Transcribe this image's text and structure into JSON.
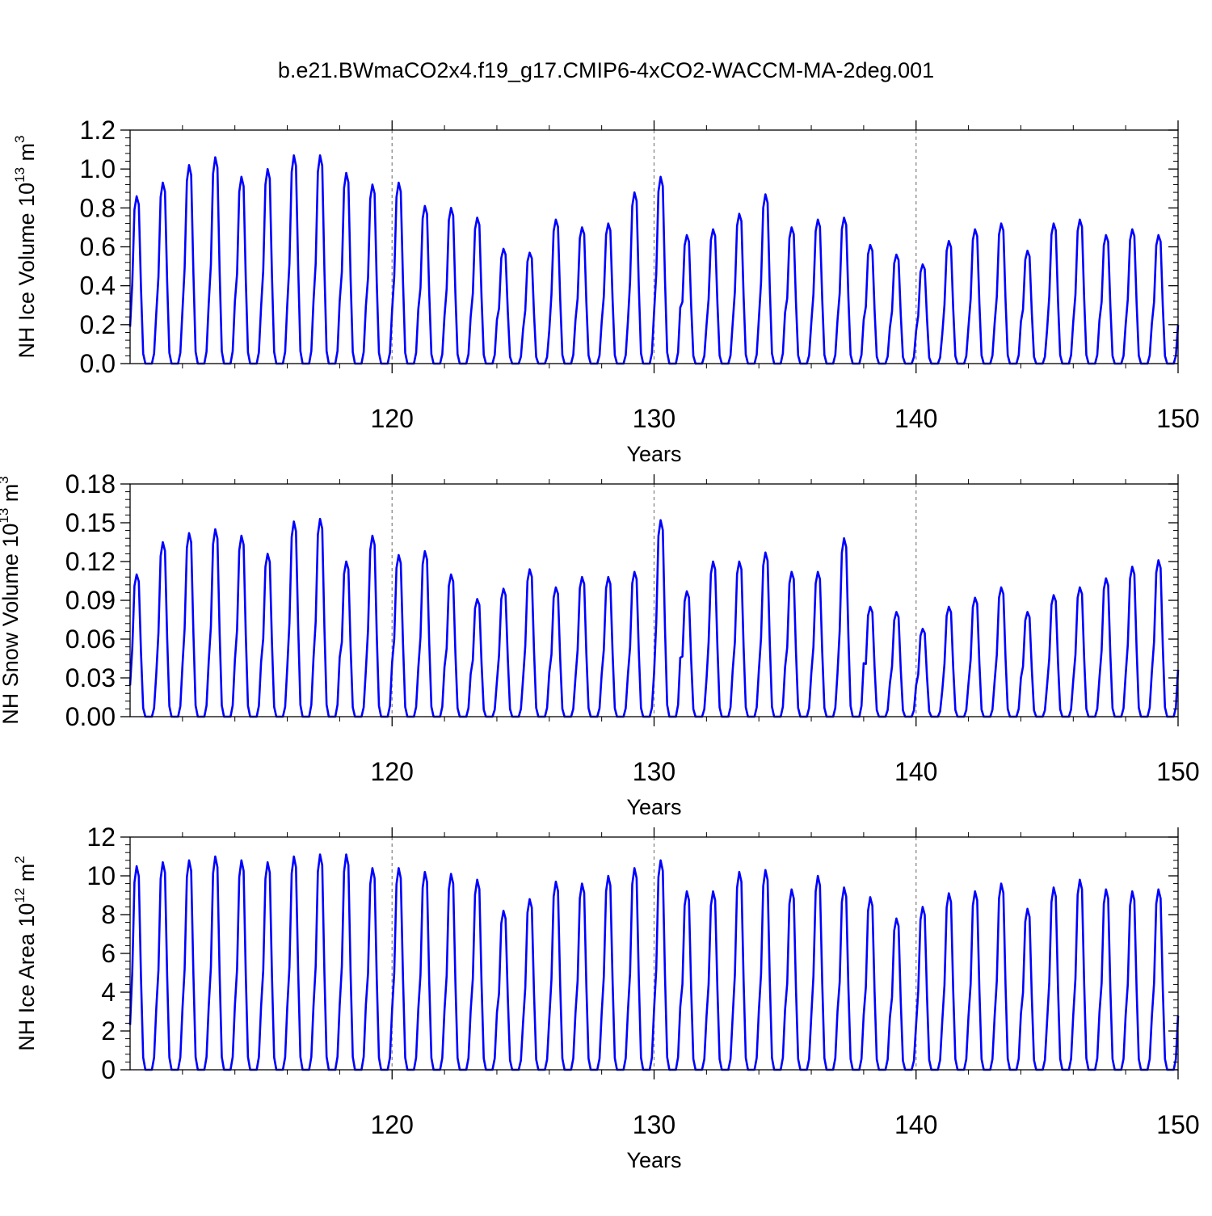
{
  "title": "b.e21.BWmaCO2x4.f19_g17.CMIP6-4xCO2-WACCM-MA-2deg.001",
  "colors": {
    "series": "#0000ff",
    "axis": "#000000",
    "refline": "#888888"
  },
  "chart_data": [
    {
      "type": "line",
      "ylabel_main": "NH Ice Volume 10",
      "ylabel_exp": "13",
      "ylabel_unit": " m",
      "ylabel_unit_exp": "3",
      "xlabel": "Years",
      "xlim": [
        110,
        150
      ],
      "ylim": [
        0,
        1.2
      ],
      "x_ticks": [
        120,
        130,
        140,
        150
      ],
      "x_tick_labels": [
        "120",
        "130",
        "140",
        "150"
      ],
      "y_ticks": [
        0,
        0.2,
        0.4,
        0.6,
        0.8,
        1.0,
        1.2
      ],
      "y_tick_labels": [
        "0.0",
        "0.2",
        "0.4",
        "0.6",
        "0.8",
        "1.0",
        "1.2"
      ],
      "ref_lines_x": [
        120,
        130,
        140
      ],
      "series": [
        {
          "start_year": 110.04,
          "min_value": 0.0,
          "annual_max": [
            0.86,
            0.93,
            1.02,
            1.06,
            0.96,
            1.0,
            1.07,
            1.07,
            0.98,
            0.92,
            0.93,
            0.81,
            0.8,
            0.75,
            0.59,
            0.57,
            0.74,
            0.7,
            0.72,
            0.88,
            0.96,
            0.66,
            0.69,
            0.77,
            0.87,
            0.7,
            0.74,
            0.75,
            0.61,
            0.56,
            0.51,
            0.63,
            0.69,
            0.72,
            0.58,
            0.72,
            0.74,
            0.66,
            0.69,
            0.66
          ]
        }
      ]
    },
    {
      "type": "line",
      "ylabel_main": "NH Snow Volume 10",
      "ylabel_exp": "13",
      "ylabel_unit": " m",
      "ylabel_unit_exp": "3",
      "xlabel": "Years",
      "xlim": [
        110,
        150
      ],
      "ylim": [
        0,
        0.18
      ],
      "x_ticks": [
        120,
        130,
        140,
        150
      ],
      "x_tick_labels": [
        "120",
        "130",
        "140",
        "150"
      ],
      "y_ticks": [
        0,
        0.03,
        0.06,
        0.09,
        0.12,
        0.15,
        0.18
      ],
      "y_tick_labels": [
        "0.00",
        "0.03",
        "0.06",
        "0.09",
        "0.12",
        "0.15",
        "0.18"
      ],
      "ref_lines_x": [
        120,
        130,
        140
      ],
      "series": [
        {
          "start_year": 110.04,
          "min_value": 0.0,
          "annual_max": [
            0.11,
            0.135,
            0.142,
            0.145,
            0.14,
            0.126,
            0.151,
            0.153,
            0.12,
            0.14,
            0.125,
            0.128,
            0.11,
            0.091,
            0.099,
            0.114,
            0.1,
            0.108,
            0.108,
            0.112,
            0.152,
            0.097,
            0.12,
            0.12,
            0.127,
            0.112,
            0.112,
            0.138,
            0.085,
            0.081,
            0.068,
            0.085,
            0.092,
            0.1,
            0.081,
            0.094,
            0.1,
            0.107,
            0.116,
            0.121
          ]
        }
      ]
    },
    {
      "type": "line",
      "ylabel_main": "NH Ice Area 10",
      "ylabel_exp": "12",
      "ylabel_unit": " m",
      "ylabel_unit_exp": "2",
      "xlabel": "Years",
      "xlim": [
        110,
        150
      ],
      "ylim": [
        0,
        12
      ],
      "x_ticks": [
        120,
        130,
        140,
        150
      ],
      "x_tick_labels": [
        "120",
        "130",
        "140",
        "150"
      ],
      "y_ticks": [
        0,
        2,
        4,
        6,
        8,
        10,
        12
      ],
      "y_tick_labels": [
        "0",
        "2",
        "4",
        "6",
        "8",
        "10",
        "12"
      ],
      "ref_lines_x": [
        120,
        130,
        140
      ],
      "series": [
        {
          "start_year": 110.04,
          "min_value": 0.0,
          "annual_max": [
            10.5,
            10.7,
            10.8,
            11.0,
            10.8,
            10.7,
            11.0,
            11.1,
            11.1,
            10.4,
            10.4,
            10.2,
            10.1,
            9.8,
            8.2,
            8.8,
            9.7,
            9.6,
            10.0,
            10.4,
            10.8,
            9.2,
            9.2,
            10.2,
            10.3,
            9.3,
            10.0,
            9.4,
            8.9,
            7.8,
            8.4,
            9.1,
            9.2,
            9.6,
            8.3,
            9.4,
            9.8,
            9.3,
            9.2,
            9.3
          ]
        }
      ]
    }
  ]
}
